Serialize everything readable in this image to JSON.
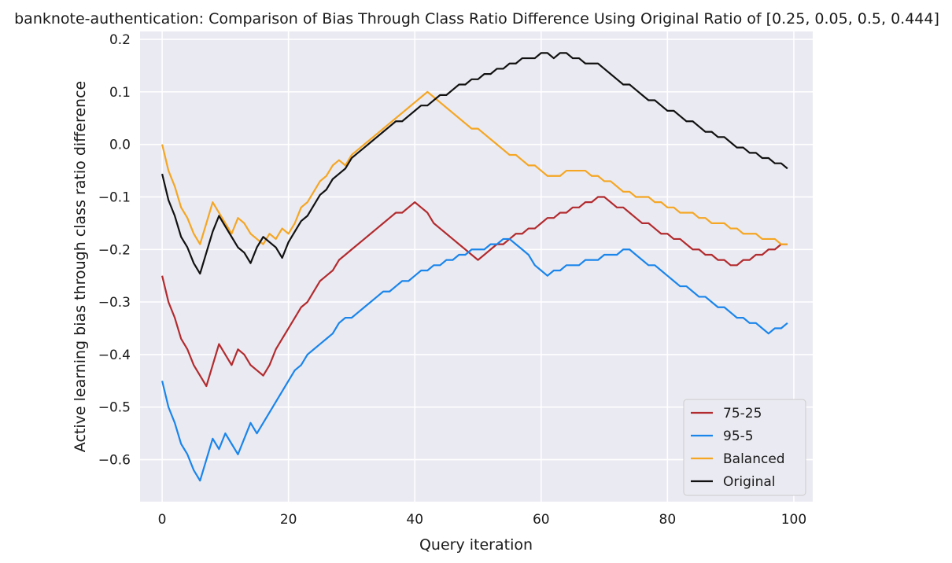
{
  "chart_data": {
    "type": "line",
    "title": "banknote-authentication: Comparison of Bias Through Class Ratio Difference Using Original Ratio of [0.25, 0.05, 0.5, 0.444]",
    "xlabel": "Query iteration",
    "ylabel": "Active learning bias through class ratio difference",
    "xlim": [
      -3.5,
      103
    ],
    "ylim": [
      -0.68,
      0.215
    ],
    "xticks": [
      0,
      20,
      40,
      60,
      80,
      100
    ],
    "xtick_labels": [
      "0",
      "20",
      "40",
      "60",
      "80",
      "100"
    ],
    "yticks": [
      0.2,
      0.1,
      0.0,
      -0.1,
      -0.2,
      -0.3,
      -0.4,
      -0.5,
      -0.6
    ],
    "ytick_labels": [
      "0.2",
      "0.1",
      "0.0",
      "−0.1",
      "−0.2",
      "−0.3",
      "−0.4",
      "−0.5",
      "−0.6"
    ],
    "grid": true,
    "background": "#eaeaf2",
    "legend_position": "lower-right",
    "series": [
      {
        "name": "75-25",
        "color": "#b22b2e",
        "x": [
          0,
          1,
          2,
          3,
          4,
          5,
          6,
          7,
          8,
          9,
          10,
          11,
          12,
          13,
          14,
          15,
          16,
          17,
          18,
          19,
          20,
          21,
          22,
          23,
          24,
          25,
          26,
          27,
          28,
          29,
          30,
          31,
          32,
          33,
          34,
          35,
          36,
          37,
          38,
          39,
          40,
          41,
          42,
          43,
          44,
          45,
          46,
          47,
          48,
          49,
          50,
          51,
          52,
          53,
          54,
          55,
          56,
          57,
          58,
          59,
          60,
          61,
          62,
          63,
          64,
          65,
          66,
          67,
          68,
          69,
          70,
          71,
          72,
          73,
          74,
          75,
          76,
          77,
          78,
          79,
          80,
          81,
          82,
          83,
          84,
          85,
          86,
          87,
          88,
          89,
          90,
          91,
          92,
          93,
          94,
          95,
          96,
          97,
          98,
          99
        ],
        "y": [
          -0.25,
          -0.3,
          -0.33,
          -0.37,
          -0.39,
          -0.42,
          -0.44,
          -0.46,
          -0.42,
          -0.38,
          -0.4,
          -0.42,
          -0.39,
          -0.4,
          -0.42,
          -0.43,
          -0.44,
          -0.42,
          -0.39,
          -0.37,
          -0.35,
          -0.33,
          -0.31,
          -0.3,
          -0.28,
          -0.26,
          -0.25,
          -0.24,
          -0.22,
          -0.21,
          -0.2,
          -0.19,
          -0.18,
          -0.17,
          -0.16,
          -0.15,
          -0.14,
          -0.13,
          -0.13,
          -0.12,
          -0.11,
          -0.12,
          -0.13,
          -0.15,
          -0.16,
          -0.17,
          -0.18,
          -0.19,
          -0.2,
          -0.21,
          -0.22,
          -0.21,
          -0.2,
          -0.19,
          -0.19,
          -0.18,
          -0.17,
          -0.17,
          -0.16,
          -0.16,
          -0.15,
          -0.14,
          -0.14,
          -0.13,
          -0.13,
          -0.12,
          -0.12,
          -0.11,
          -0.11,
          -0.1,
          -0.1,
          -0.11,
          -0.12,
          -0.12,
          -0.13,
          -0.14,
          -0.15,
          -0.15,
          -0.16,
          -0.17,
          -0.17,
          -0.18,
          -0.18,
          -0.19,
          -0.2,
          -0.2,
          -0.21,
          -0.21,
          -0.22,
          -0.22,
          -0.23,
          -0.23,
          -0.22,
          -0.22,
          -0.21,
          -0.21,
          -0.2,
          -0.2,
          -0.19,
          -0.19
        ]
      },
      {
        "name": "95-5",
        "color": "#1a85eb",
        "x": [
          0,
          1,
          2,
          3,
          4,
          5,
          6,
          7,
          8,
          9,
          10,
          11,
          12,
          13,
          14,
          15,
          16,
          17,
          18,
          19,
          20,
          21,
          22,
          23,
          24,
          25,
          26,
          27,
          28,
          29,
          30,
          31,
          32,
          33,
          34,
          35,
          36,
          37,
          38,
          39,
          40,
          41,
          42,
          43,
          44,
          45,
          46,
          47,
          48,
          49,
          50,
          51,
          52,
          53,
          54,
          55,
          56,
          57,
          58,
          59,
          60,
          61,
          62,
          63,
          64,
          65,
          66,
          67,
          68,
          69,
          70,
          71,
          72,
          73,
          74,
          75,
          76,
          77,
          78,
          79,
          80,
          81,
          82,
          83,
          84,
          85,
          86,
          87,
          88,
          89,
          90,
          91,
          92,
          93,
          94,
          95,
          96,
          97,
          98,
          99
        ],
        "y": [
          -0.45,
          -0.5,
          -0.53,
          -0.57,
          -0.59,
          -0.62,
          -0.64,
          -0.6,
          -0.56,
          -0.58,
          -0.55,
          -0.57,
          -0.59,
          -0.56,
          -0.53,
          -0.55,
          -0.53,
          -0.51,
          -0.49,
          -0.47,
          -0.45,
          -0.43,
          -0.42,
          -0.4,
          -0.39,
          -0.38,
          -0.37,
          -0.36,
          -0.34,
          -0.33,
          -0.33,
          -0.32,
          -0.31,
          -0.3,
          -0.29,
          -0.28,
          -0.28,
          -0.27,
          -0.26,
          -0.26,
          -0.25,
          -0.24,
          -0.24,
          -0.23,
          -0.23,
          -0.22,
          -0.22,
          -0.21,
          -0.21,
          -0.2,
          -0.2,
          -0.2,
          -0.19,
          -0.19,
          -0.18,
          -0.18,
          -0.19,
          -0.2,
          -0.21,
          -0.23,
          -0.24,
          -0.25,
          -0.24,
          -0.24,
          -0.23,
          -0.23,
          -0.23,
          -0.22,
          -0.22,
          -0.22,
          -0.21,
          -0.21,
          -0.21,
          -0.2,
          -0.2,
          -0.21,
          -0.22,
          -0.23,
          -0.23,
          -0.24,
          -0.25,
          -0.26,
          -0.27,
          -0.27,
          -0.28,
          -0.29,
          -0.29,
          -0.3,
          -0.31,
          -0.31,
          -0.32,
          -0.33,
          -0.33,
          -0.34,
          -0.34,
          -0.35,
          -0.36,
          -0.35,
          -0.35,
          -0.34
        ]
      },
      {
        "name": "Balanced",
        "color": "#f5a623",
        "x": [
          0,
          1,
          2,
          3,
          4,
          5,
          6,
          7,
          8,
          9,
          10,
          11,
          12,
          13,
          14,
          15,
          16,
          17,
          18,
          19,
          20,
          21,
          22,
          23,
          24,
          25,
          26,
          27,
          28,
          29,
          30,
          31,
          32,
          33,
          34,
          35,
          36,
          37,
          38,
          39,
          40,
          41,
          42,
          43,
          44,
          45,
          46,
          47,
          48,
          49,
          50,
          51,
          52,
          53,
          54,
          55,
          56,
          57,
          58,
          59,
          60,
          61,
          62,
          63,
          64,
          65,
          66,
          67,
          68,
          69,
          70,
          71,
          72,
          73,
          74,
          75,
          76,
          77,
          78,
          79,
          80,
          81,
          82,
          83,
          84,
          85,
          86,
          87,
          88,
          89,
          90,
          91,
          92,
          93,
          94,
          95,
          96,
          97,
          98,
          99
        ],
        "y": [
          0.0,
          -0.05,
          -0.08,
          -0.12,
          -0.14,
          -0.17,
          -0.19,
          -0.15,
          -0.11,
          -0.13,
          -0.15,
          -0.17,
          -0.14,
          -0.15,
          -0.17,
          -0.18,
          -0.19,
          -0.17,
          -0.18,
          -0.16,
          -0.17,
          -0.15,
          -0.12,
          -0.11,
          -0.09,
          -0.07,
          -0.06,
          -0.04,
          -0.03,
          -0.04,
          -0.02,
          -0.01,
          0.0,
          0.01,
          0.02,
          0.03,
          0.04,
          0.05,
          0.06,
          0.07,
          0.08,
          0.09,
          0.1,
          0.09,
          0.08,
          0.07,
          0.06,
          0.05,
          0.04,
          0.03,
          0.03,
          0.02,
          0.01,
          0.0,
          -0.01,
          -0.02,
          -0.02,
          -0.03,
          -0.04,
          -0.04,
          -0.05,
          -0.06,
          -0.06,
          -0.06,
          -0.05,
          -0.05,
          -0.05,
          -0.05,
          -0.06,
          -0.06,
          -0.07,
          -0.07,
          -0.08,
          -0.09,
          -0.09,
          -0.1,
          -0.1,
          -0.1,
          -0.11,
          -0.11,
          -0.12,
          -0.12,
          -0.13,
          -0.13,
          -0.13,
          -0.14,
          -0.14,
          -0.15,
          -0.15,
          -0.15,
          -0.16,
          -0.16,
          -0.17,
          -0.17,
          -0.17,
          -0.18,
          -0.18,
          -0.18,
          -0.19,
          -0.19
        ]
      },
      {
        "name": "Original",
        "color": "#111111",
        "x": [
          0,
          1,
          2,
          3,
          4,
          5,
          6,
          7,
          8,
          9,
          10,
          11,
          12,
          13,
          14,
          15,
          16,
          17,
          18,
          19,
          20,
          21,
          22,
          23,
          24,
          25,
          26,
          27,
          28,
          29,
          30,
          31,
          32,
          33,
          34,
          35,
          36,
          37,
          38,
          39,
          40,
          41,
          42,
          43,
          44,
          45,
          46,
          47,
          48,
          49,
          50,
          51,
          52,
          53,
          54,
          55,
          56,
          57,
          58,
          59,
          60,
          61,
          62,
          63,
          64,
          65,
          66,
          67,
          68,
          69,
          70,
          71,
          72,
          73,
          74,
          75,
          76,
          77,
          78,
          79,
          80,
          81,
          82,
          83,
          84,
          85,
          86,
          87,
          88,
          89,
          90,
          91,
          92,
          93,
          94,
          95,
          96,
          97,
          98,
          99
        ],
        "y": [
          -0.056,
          -0.106,
          -0.136,
          -0.176,
          -0.196,
          -0.226,
          -0.246,
          -0.206,
          -0.166,
          -0.136,
          -0.156,
          -0.176,
          -0.196,
          -0.206,
          -0.226,
          -0.196,
          -0.176,
          -0.186,
          -0.196,
          -0.216,
          -0.186,
          -0.166,
          -0.146,
          -0.136,
          -0.116,
          -0.096,
          -0.086,
          -0.066,
          -0.056,
          -0.046,
          -0.026,
          -0.016,
          -0.006,
          0.004,
          0.014,
          0.024,
          0.034,
          0.044,
          0.044,
          0.054,
          0.064,
          0.074,
          0.074,
          0.084,
          0.094,
          0.094,
          0.104,
          0.114,
          0.114,
          0.124,
          0.124,
          0.134,
          0.134,
          0.144,
          0.144,
          0.154,
          0.154,
          0.164,
          0.164,
          0.164,
          0.174,
          0.174,
          0.164,
          0.174,
          0.174,
          0.164,
          0.164,
          0.154,
          0.154,
          0.154,
          0.144,
          0.134,
          0.124,
          0.114,
          0.114,
          0.104,
          0.094,
          0.084,
          0.084,
          0.074,
          0.064,
          0.064,
          0.054,
          0.044,
          0.044,
          0.034,
          0.024,
          0.024,
          0.014,
          0.014,
          0.004,
          -0.006,
          -0.006,
          -0.016,
          -0.016,
          -0.026,
          -0.026,
          -0.036,
          -0.036,
          -0.046
        ]
      }
    ]
  }
}
